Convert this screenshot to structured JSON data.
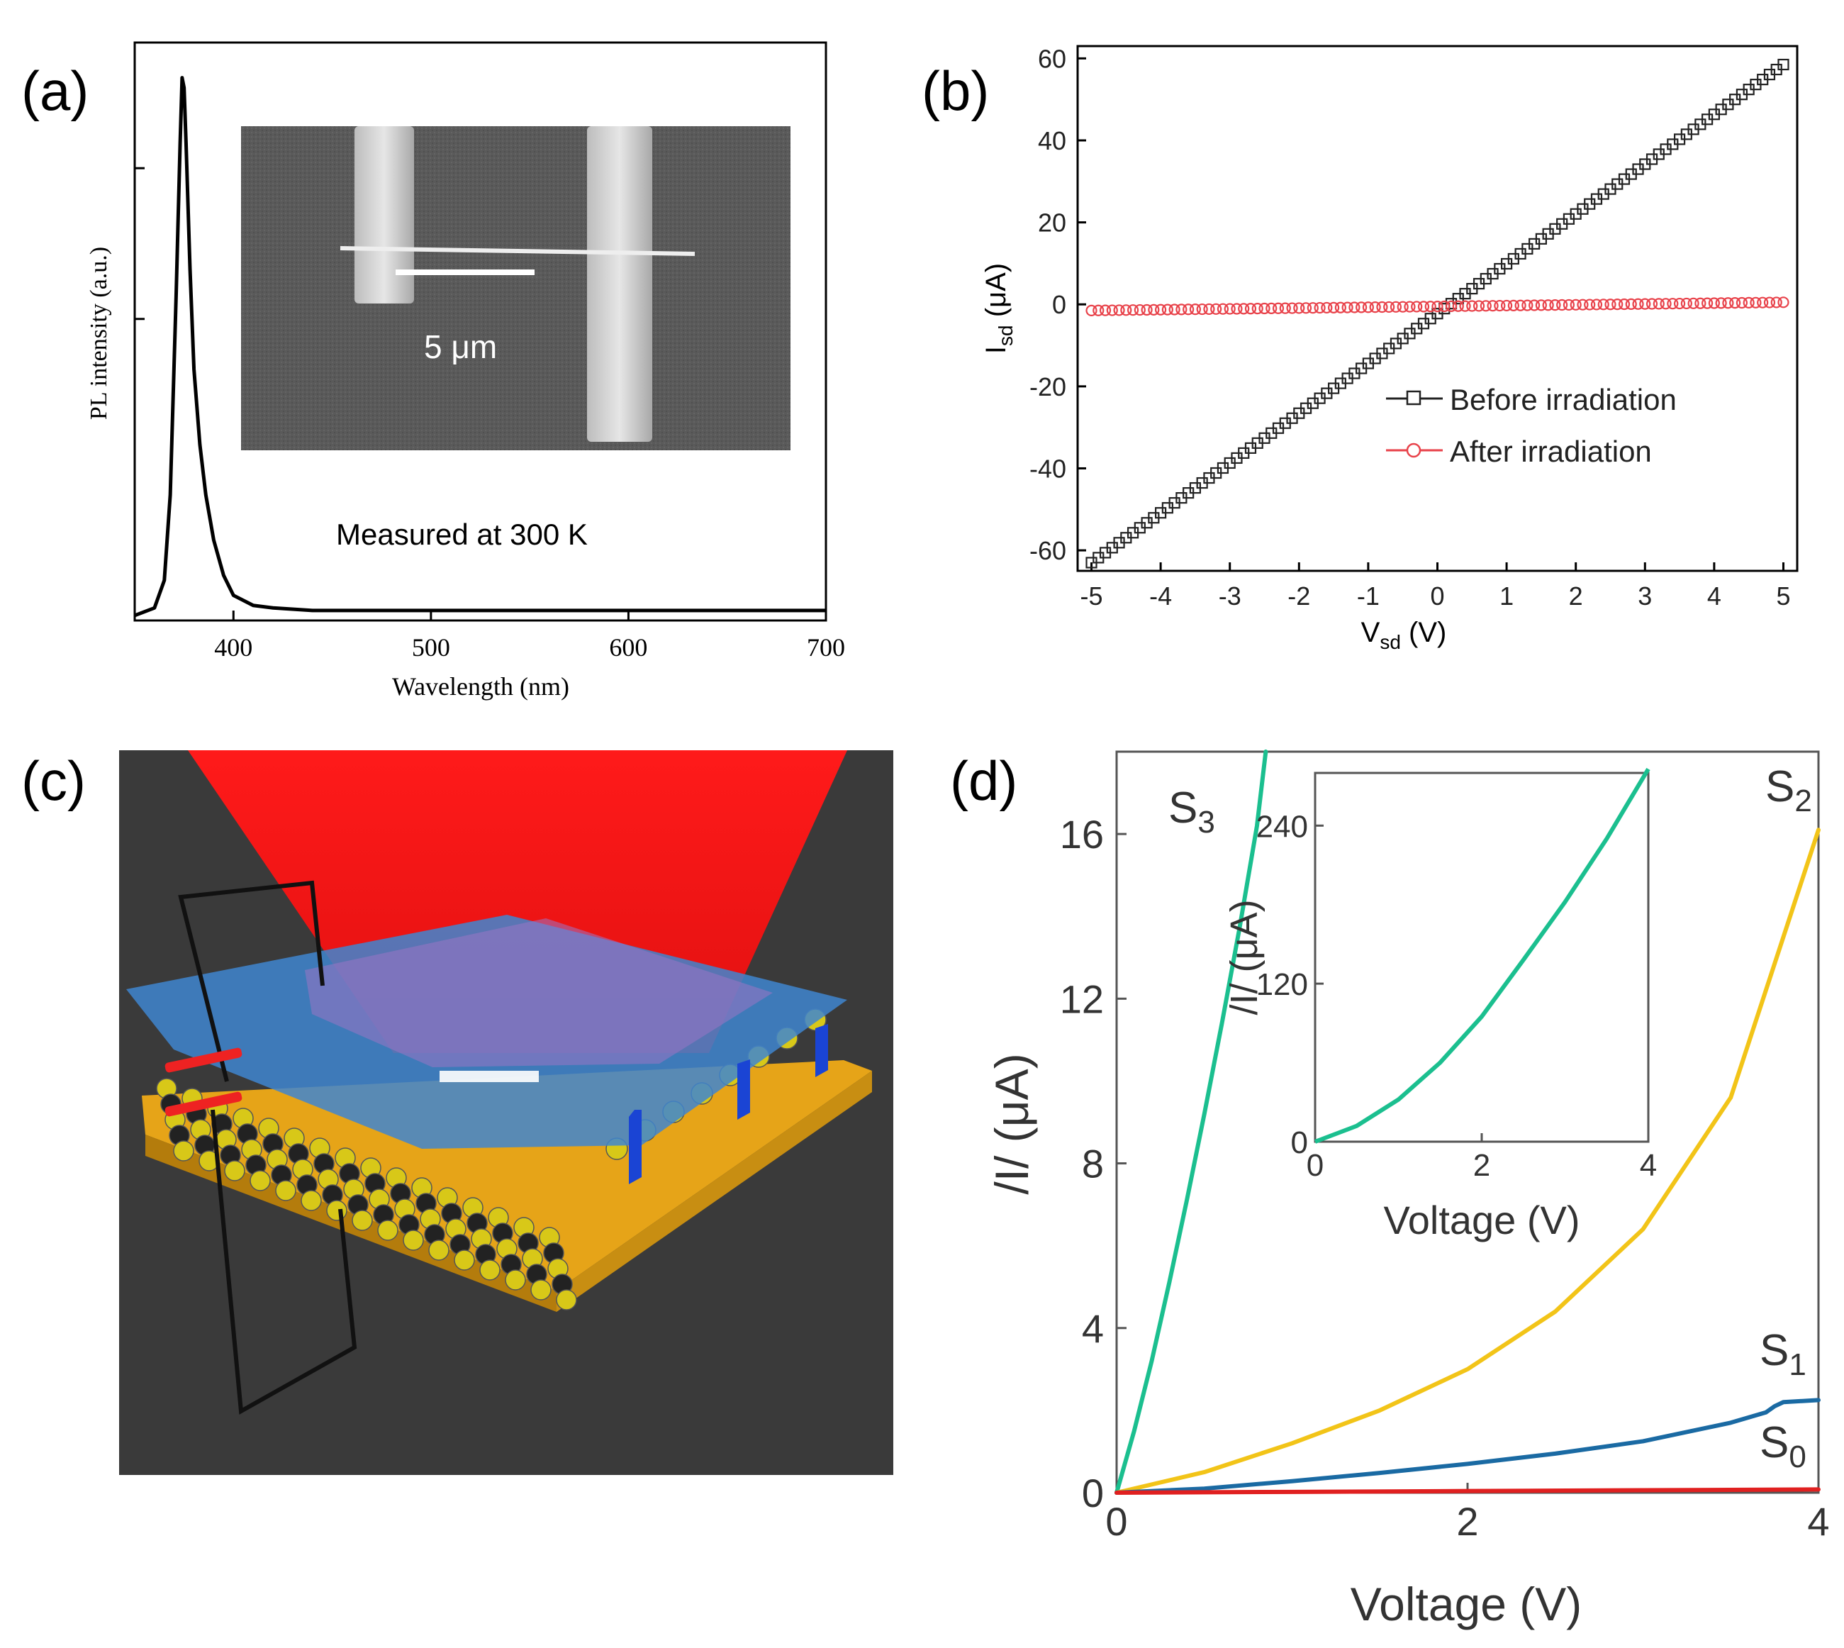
{
  "panel_labels": {
    "a": "(a)",
    "b": "(b)",
    "c": "(c)",
    "d": "(d)"
  },
  "panel_a": {
    "annotation": "Measured at 300 K",
    "inset_scale": "5 μm"
  },
  "panel_c": {
    "description_icon": "nanodevice-schematic-icon"
  },
  "panel_d": {
    "inset_xlabel": "Voltage (V)",
    "inset_ylabel": "/I/ (μA)"
  },
  "chart_data": [
    {
      "id": "a",
      "type": "line",
      "title": "",
      "xlabel": "Wavelength (nm)",
      "ylabel": "PL intensity (a.u.)",
      "xlim": [
        350,
        700
      ],
      "ylim": [
        0,
        1.15
      ],
      "xticks": [
        400,
        500,
        600,
        700
      ],
      "yticks_unlabeled": [
        0.6,
        0.9
      ],
      "series": [
        {
          "name": "PL",
          "color": "#000000",
          "x": [
            350,
            360,
            365,
            368,
            371,
            373,
            374,
            375,
            376,
            378,
            380,
            383,
            386,
            390,
            395,
            400,
            410,
            420,
            440,
            500,
            600,
            700
          ],
          "y": [
            0.01,
            0.025,
            0.08,
            0.25,
            0.65,
            0.95,
            1.08,
            1.06,
            0.95,
            0.7,
            0.5,
            0.35,
            0.25,
            0.16,
            0.09,
            0.05,
            0.03,
            0.025,
            0.02,
            0.02,
            0.02,
            0.02
          ]
        }
      ]
    },
    {
      "id": "b",
      "type": "scatter",
      "title": "",
      "xlabel": "V",
      "xlabel_sub": "sd",
      "xlabel_unit": " (V)",
      "ylabel": "I",
      "ylabel_sub": "sd",
      "ylabel_unit": " (μA)",
      "xlim": [
        -5.2,
        5.2
      ],
      "ylim": [
        -65,
        63
      ],
      "xticks": [
        -5,
        -4,
        -3,
        -2,
        -1,
        0,
        1,
        2,
        3,
        4,
        5
      ],
      "yticks": [
        -60,
        -40,
        -20,
        0,
        20,
        40,
        60
      ],
      "legend_position": "lower-right",
      "series": [
        {
          "name": "Before irradiation",
          "marker": "square",
          "color": "#222222",
          "v_start": -5,
          "v_end": 5,
          "points": 101,
          "i_at_minus5": -63,
          "i_at_plus5": 58.5
        },
        {
          "name": "After irradiation",
          "marker": "circle",
          "color": "#e8424a",
          "v_start": -5,
          "v_end": 5,
          "points": 101,
          "i_at_minus5": -1.5,
          "i_at_plus5": 0.5
        }
      ]
    },
    {
      "id": "d",
      "type": "line",
      "title": "",
      "xlabel": "Voltage (V)",
      "ylabel": "/I/ (μA)",
      "xlim": [
        0,
        4
      ],
      "ylim": [
        0,
        18
      ],
      "xticks": [
        0,
        2,
        4
      ],
      "yticks": [
        0,
        4,
        8,
        12,
        16
      ],
      "series": [
        {
          "name": "S3",
          "label_main": "S",
          "label_sub": "3",
          "color": "#1bbf8f",
          "x": [
            0,
            0.1,
            0.2,
            0.3,
            0.4,
            0.5,
            0.6,
            0.7,
            0.8,
            0.85
          ],
          "y": [
            0,
            1.5,
            3.2,
            5.1,
            7.1,
            9.2,
            11.4,
            13.7,
            16.2,
            18.0
          ]
        },
        {
          "name": "S2",
          "label_main": "S",
          "label_sub": "2",
          "color": "#f2c418",
          "x": [
            0,
            0.5,
            1.0,
            1.5,
            2.0,
            2.5,
            3.0,
            3.5,
            4.0
          ],
          "y": [
            0,
            0.5,
            1.2,
            2.0,
            3.0,
            4.4,
            6.4,
            9.6,
            16.1
          ]
        },
        {
          "name": "S1",
          "label_main": "S",
          "label_sub": "1",
          "color": "#1a6aa3",
          "x": [
            0,
            0.5,
            1.0,
            1.5,
            2.0,
            2.5,
            3.0,
            3.5,
            3.7,
            3.75,
            3.8,
            4.0
          ],
          "y": [
            0,
            0.1,
            0.28,
            0.48,
            0.7,
            0.95,
            1.25,
            1.7,
            1.95,
            2.1,
            2.2,
            2.25
          ]
        },
        {
          "name": "S0",
          "label_main": "S",
          "label_sub": "0",
          "color": "#e02020",
          "x": [
            0,
            1,
            2,
            3,
            4
          ],
          "y": [
            0,
            0.02,
            0.04,
            0.06,
            0.08
          ]
        }
      ],
      "inset": {
        "xlim": [
          0,
          4
        ],
        "ylim": [
          0,
          280
        ],
        "xticks": [
          0,
          2,
          4
        ],
        "yticks": [
          0,
          120,
          240
        ],
        "series": [
          {
            "name": "S3",
            "color": "#1bbf8f",
            "x": [
              0,
              0.5,
              1.0,
              1.5,
              2.0,
              2.5,
              3.0,
              3.5,
              4.0
            ],
            "y": [
              0,
              12,
              32,
              60,
              95,
              138,
              182,
              230,
              283
            ]
          }
        ]
      }
    }
  ]
}
